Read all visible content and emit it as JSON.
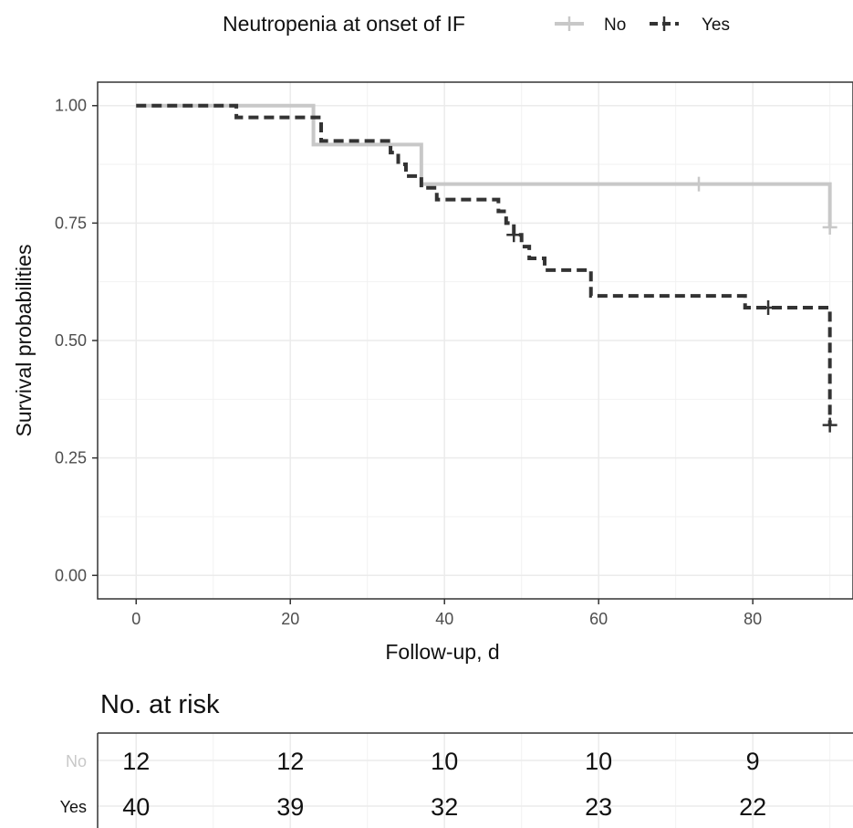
{
  "chart_data": [
    {
      "type": "line",
      "subtype": "kaplan-meier",
      "title": "",
      "xlabel": "Follow-up, d",
      "ylabel": "Survival probabilities",
      "xlim": [
        -5,
        93
      ],
      "ylim": [
        -0.05,
        1.05
      ],
      "x_ticks": [
        "0",
        "20",
        "40",
        "60",
        "80"
      ],
      "y_ticks": [
        "0.00",
        "0.25",
        "0.50",
        "0.75",
        "1.00"
      ],
      "x_tick_values": [
        0,
        20,
        40,
        60,
        80
      ],
      "y_tick_values": [
        0,
        0.25,
        0.5,
        0.75,
        1
      ],
      "grid": true,
      "legend": {
        "title": "Neutropenia at onset of IF",
        "position": "top",
        "entries": [
          "No",
          "Yes"
        ]
      },
      "series": [
        {
          "name": "No",
          "color": "#c8c8c8",
          "line_style": "solid",
          "steps": [
            [
              0,
              1.0
            ],
            [
              23,
              0.917
            ],
            [
              37,
              0.833
            ],
            [
              90,
              0.833
            ],
            [
              90,
              0.741
            ]
          ],
          "censored": [
            [
              73,
              0.833
            ],
            [
              90,
              0.741
            ]
          ]
        },
        {
          "name": "Yes",
          "color": "#333333",
          "line_style": "dashed",
          "steps": [
            [
              0,
              1.0
            ],
            [
              13,
              0.975
            ],
            [
              24,
              0.925
            ],
            [
              33,
              0.9
            ],
            [
              34,
              0.875
            ],
            [
              35,
              0.85
            ],
            [
              37,
              0.825
            ],
            [
              39,
              0.8
            ],
            [
              47,
              0.775
            ],
            [
              48,
              0.75
            ],
            [
              49,
              0.725
            ],
            [
              50,
              0.7
            ],
            [
              51,
              0.675
            ],
            [
              53,
              0.65
            ],
            [
              59,
              0.595
            ],
            [
              79,
              0.57
            ],
            [
              90,
              0.57
            ],
            [
              90,
              0.32
            ]
          ],
          "censored": [
            [
              49,
              0.725
            ],
            [
              82,
              0.57
            ],
            [
              90,
              0.32
            ]
          ]
        }
      ]
    },
    {
      "type": "table",
      "title": "No. at risk",
      "columns_x": [
        0,
        20,
        40,
        60,
        80
      ],
      "rows": [
        {
          "label": "No",
          "values": [
            "12",
            "12",
            "10",
            "10",
            "9"
          ]
        },
        {
          "label": "Yes",
          "values": [
            "40",
            "39",
            "32",
            "23",
            "22"
          ]
        }
      ]
    }
  ]
}
